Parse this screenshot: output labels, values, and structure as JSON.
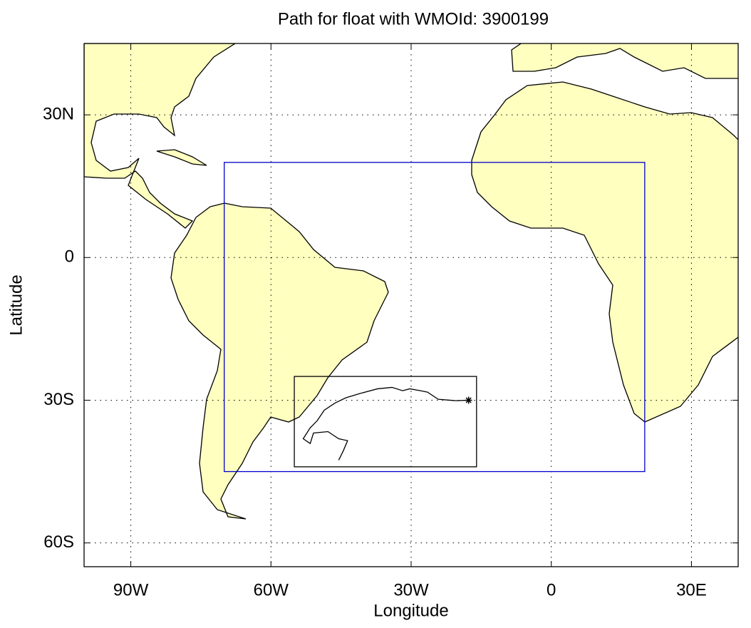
{
  "chart_data": {
    "type": "map",
    "title": "Path for float with WMOId: 3900199",
    "x_label": "Longitude",
    "y_label": "Latitude",
    "xlim": [
      -100,
      40
    ],
    "ylim": [
      -65,
      45
    ],
    "xticks": [
      {
        "value": -90,
        "label": "90W"
      },
      {
        "value": -60,
        "label": "60W"
      },
      {
        "value": -30,
        "label": "30W"
      },
      0,
      {
        "value": 30,
        "label": "30E"
      }
    ],
    "yticks": [
      {
        "value": 30,
        "label": "30N"
      },
      0,
      {
        "value": -30,
        "label": "30S"
      },
      {
        "value": -60,
        "label": "60S"
      }
    ],
    "grid": true,
    "regions": [
      {
        "lon": [
          -70,
          20
        ],
        "lat": [
          -45,
          20
        ],
        "color": "#0000cc"
      },
      {
        "lon": [
          -55,
          -16
        ],
        "lat": [
          -44,
          -25
        ],
        "color": "#000000"
      }
    ],
    "series": [
      {
        "color": "#000000",
        "x": [
          -17.7,
          -20.4,
          -24.2,
          -26.5,
          -28.0,
          -30.3,
          -31.8,
          -34.1,
          -37.2,
          -41.0,
          -44.0,
          -46.3,
          -48.6,
          -50.1,
          -51.6,
          -53.1,
          -51.6,
          -50.9,
          -47.8,
          -45.5,
          -43.6,
          -44.5,
          -45.5
        ],
        "y": [
          -30.0,
          -30.1,
          -29.8,
          -28.3,
          -28.0,
          -27.6,
          -28.0,
          -27.3,
          -27.6,
          -28.6,
          -29.5,
          -30.6,
          -32.1,
          -34.3,
          -35.8,
          -38.1,
          -39.1,
          -36.9,
          -36.6,
          -38.1,
          -38.5,
          -40.6,
          -42.6
        ]
      }
    ]
  }
}
